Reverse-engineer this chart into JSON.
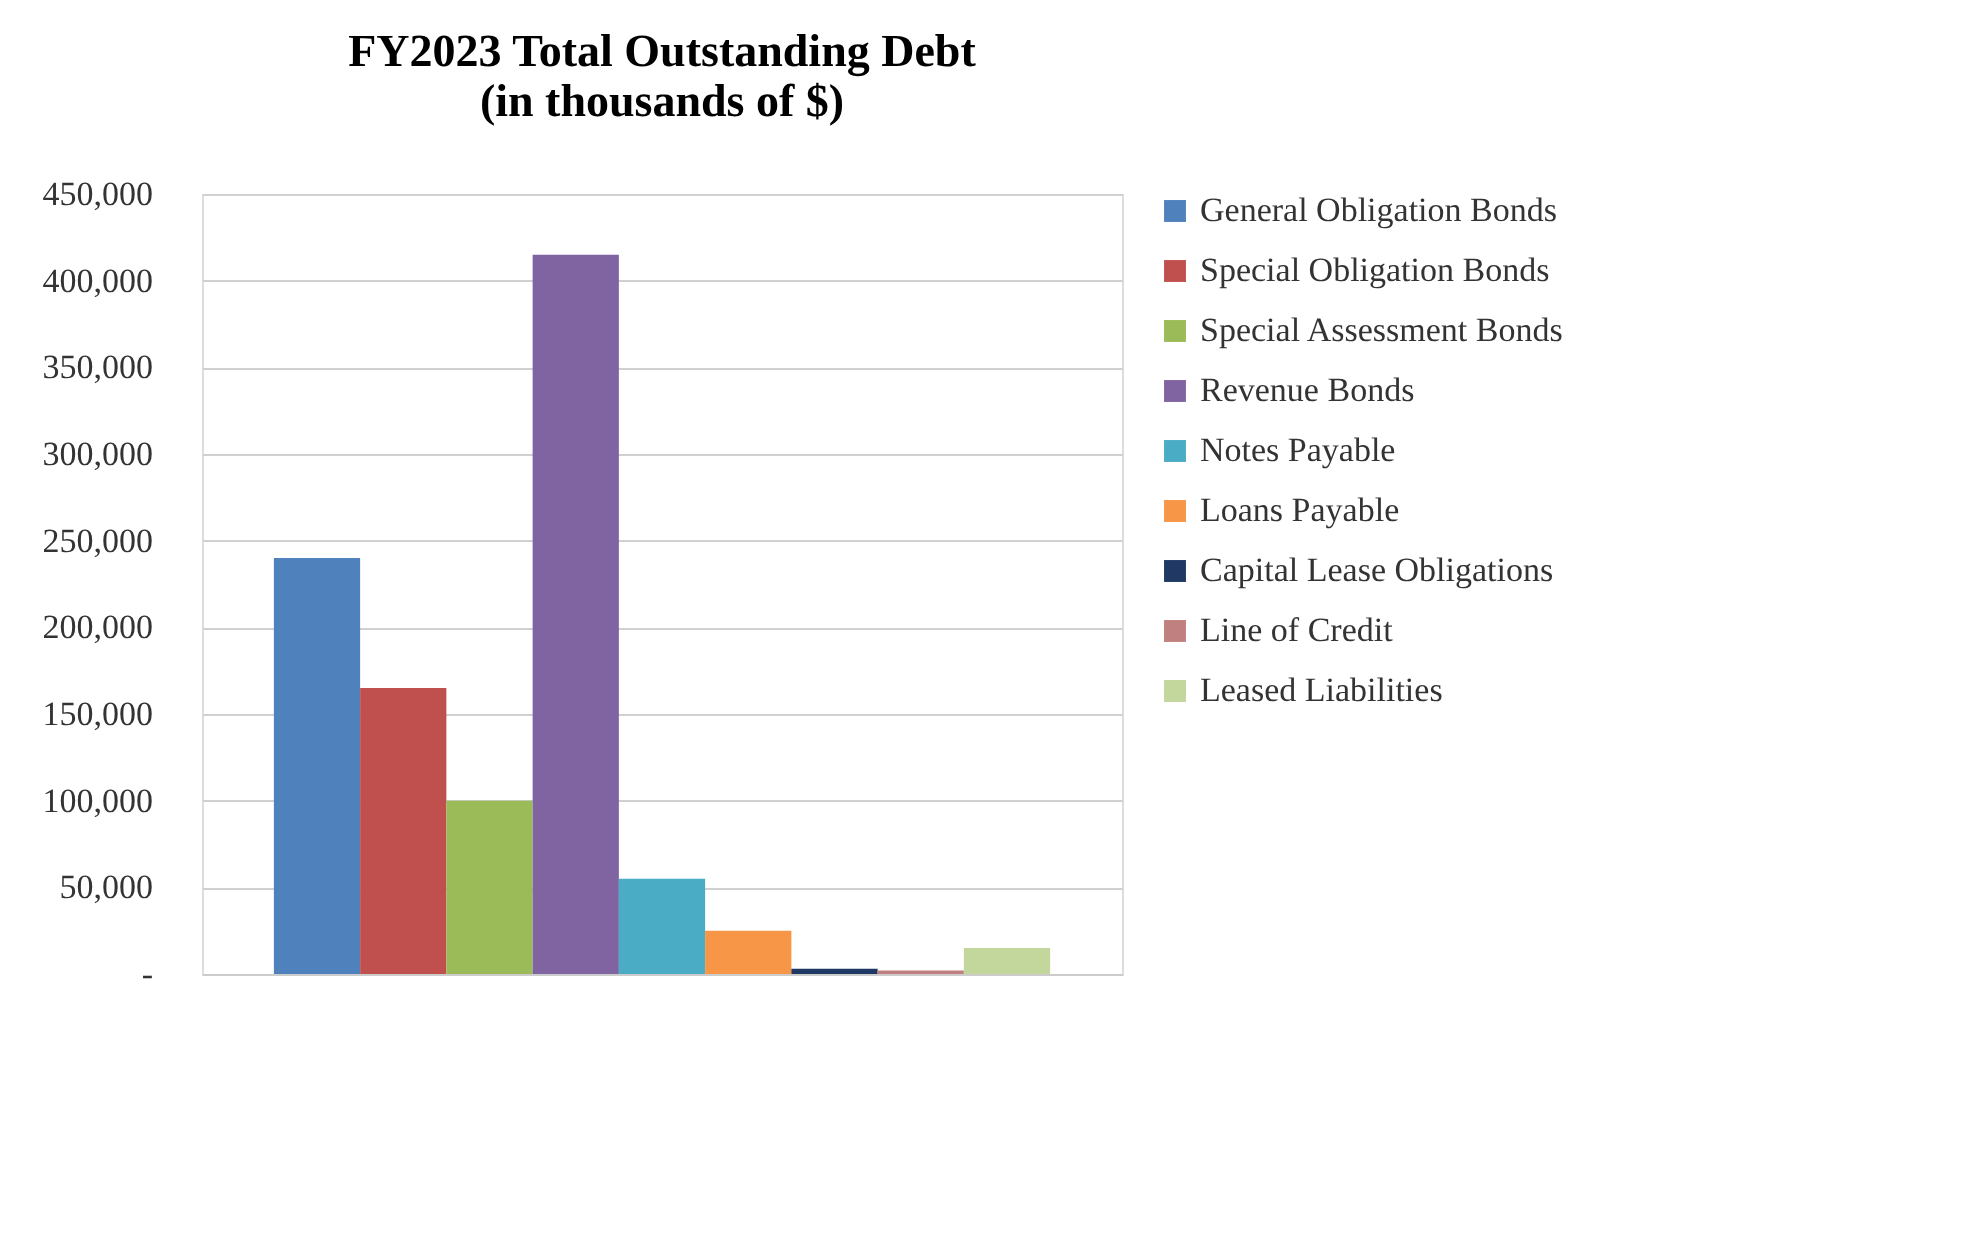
{
  "chart_data": {
    "type": "bar",
    "title": [
      "FY2023 Total Outstanding Debt",
      "(in thousands of $)"
    ],
    "categories": [
      null
    ],
    "series": [
      {
        "name": "General Obligation Bonds",
        "color": "#4f81bd",
        "values": [
          240000
        ]
      },
      {
        "name": "Special Obligation Bonds",
        "color": "#c0504d",
        "values": [
          165000
        ]
      },
      {
        "name": "Special Assessment Bonds",
        "color": "#9bbb59",
        "values": [
          100000
        ]
      },
      {
        "name": "Revenue Bonds",
        "color": "#8064a2",
        "values": [
          415000
        ]
      },
      {
        "name": "Notes Payable",
        "color": "#4bacc6",
        "values": [
          55000
        ]
      },
      {
        "name": "Loans Payable",
        "color": "#f79646",
        "values": [
          25000
        ]
      },
      {
        "name": "Capital Lease Obligations",
        "color": "#1f3864",
        "values": [
          3000
        ]
      },
      {
        "name": "Line of Credit",
        "color": "#c0807f",
        "values": [
          2000
        ]
      },
      {
        "name": "Leased Liabilities",
        "color": "#c3d69b",
        "values": [
          15000
        ]
      }
    ],
    "ylim": [
      0,
      450000
    ],
    "yticks": [
      {
        "value": 0,
        "label": "-"
      },
      {
        "value": 50000,
        "label": "50,000"
      },
      {
        "value": 100000,
        "label": "100,000"
      },
      {
        "value": 150000,
        "label": "150,000"
      },
      {
        "value": 200000,
        "label": "200,000"
      },
      {
        "value": 250000,
        "label": "250,000"
      },
      {
        "value": 300000,
        "label": "300,000"
      },
      {
        "value": 350000,
        "label": "350,000"
      },
      {
        "value": 400000,
        "label": "400,000"
      },
      {
        "value": 450000,
        "label": "450,000"
      }
    ],
    "grid": "y",
    "legend": "right",
    "tick_labels": "y"
  }
}
